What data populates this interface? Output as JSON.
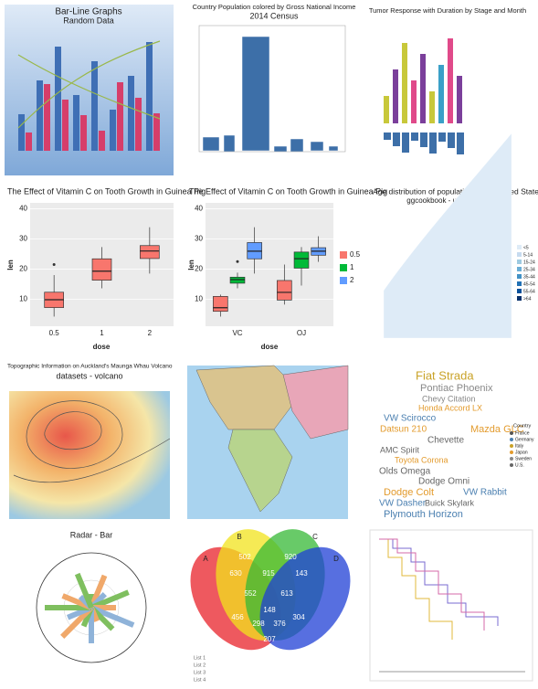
{
  "tiles": [
    {
      "title": "Bar-Line Graphs",
      "subtitle": "Random Data"
    },
    {
      "title": "Country Population colored by Gross National Income",
      "subtitle": "2014 Census"
    },
    {
      "title": "Tumor Response with Duration by Stage and Month"
    },
    {
      "title": "The Effect of Vitamin C on Tooth Growth in Guinea Pig",
      "xlabel": "dose",
      "ylabel": "len",
      "categories": [
        "0.5",
        "1",
        "2"
      ],
      "ylim": [
        1,
        42
      ],
      "yticks": [
        10,
        20,
        30,
        40
      ],
      "color": "#f8766d",
      "boxes": [
        {
          "min": 4.2,
          "q1": 7.2,
          "median": 9.8,
          "q3": 12.3,
          "max": 18,
          "outlier": 21.5
        },
        {
          "min": 13.6,
          "q1": 16.3,
          "median": 19.3,
          "q3": 23.4,
          "max": 27.3
        },
        {
          "min": 18.5,
          "q1": 23.5,
          "median": 26,
          "q3": 27.8,
          "max": 33.9
        }
      ]
    },
    {
      "title": "The Effect of Vitamin C on Tooth Growth in Guinea Pig",
      "xlabel": "dose",
      "ylabel": "len",
      "categories": [
        "VC",
        "OJ"
      ],
      "ylim": [
        1,
        42
      ],
      "yticks": [
        10,
        20,
        30,
        40
      ],
      "series": [
        {
          "name": "0.5",
          "color": "#f8766d",
          "boxes": [
            {
              "min": 4.2,
              "q1": 5.95,
              "median": 7.15,
              "q3": 10.9,
              "max": 11.5
            },
            {
              "min": 8.2,
              "q1": 9.7,
              "median": 12.25,
              "q3": 16.2,
              "max": 21.5
            }
          ]
        },
        {
          "name": "1",
          "color": "#00ba38",
          "boxes": [
            {
              "min": 13.6,
              "q1": 15.3,
              "median": 16.5,
              "q3": 17.3,
              "max": 18.8,
              "outlier": 22.5
            },
            {
              "min": 14.5,
              "q1": 20.3,
              "median": 23.45,
              "q3": 25.65,
              "max": 27.3
            }
          ]
        },
        {
          "name": "2",
          "color": "#619cff",
          "boxes": [
            {
              "min": 18.5,
              "q1": 23.4,
              "median": 25.95,
              "q3": 28.8,
              "max": 33.9
            },
            {
              "min": 22.4,
              "q1": 24.6,
              "median": 25.95,
              "q3": 27.1,
              "max": 30.9
            }
          ]
        }
      ]
    },
    {
      "title": "Age distribution of population in the United States",
      "subtitle": "ggcookbook - uspopage",
      "legend": [
        "<5",
        "5-14",
        "15-24",
        "25-34",
        "35-44",
        "45-54",
        "55-64",
        ">64"
      ]
    },
    {
      "title": "Topographic Information on Auckland's Maunga Whau Volcano",
      "subtitle": "datasets - volcano"
    },
    {},
    {
      "words": [
        "Fiat Strada",
        "Pontiac Phoenix",
        "Chevy Citation",
        "Honda Accord LX",
        "VW Scirocco",
        "Datsun 210",
        "Mazda GLC",
        "Chevette",
        "AMC Spirit",
        "Toyota Corona",
        "Olds Omega",
        "Dodge Omni",
        "Dodge Colt",
        "VW Rabbit",
        "VW Dasher",
        "Buick Skylark",
        "Plymouth Horizon"
      ],
      "legend_title": "Country",
      "legend": [
        "France",
        "Germany",
        "Italy",
        "Japan",
        "Sweden",
        "U.S."
      ]
    },
    {
      "title": "Radar - Bar"
    },
    {
      "sets": [
        "A",
        "B",
        "C",
        "D"
      ],
      "counts": [
        502,
        920,
        630,
        915,
        143,
        552,
        613,
        148,
        456,
        304,
        298,
        376,
        207
      ],
      "legend": [
        "List 1",
        "List 2",
        "List 3",
        "List 4"
      ]
    },
    {}
  ]
}
